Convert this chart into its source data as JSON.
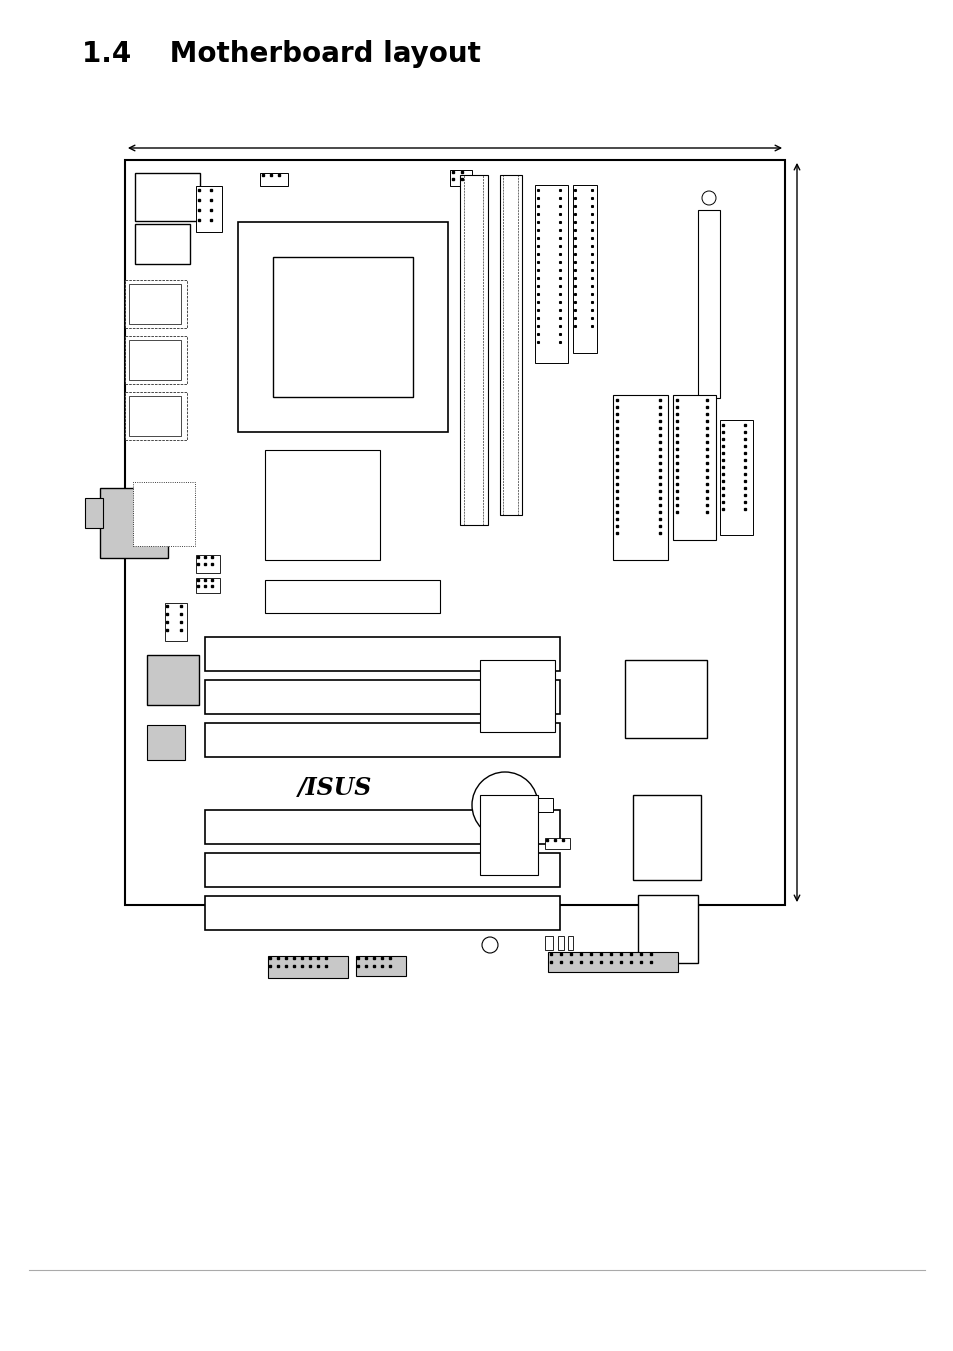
{
  "title": "1.4    Motherboard layout",
  "bg_color": "#ffffff",
  "black": "#000000",
  "gray": "#c8c8c8",
  "board_lw": 1.2
}
